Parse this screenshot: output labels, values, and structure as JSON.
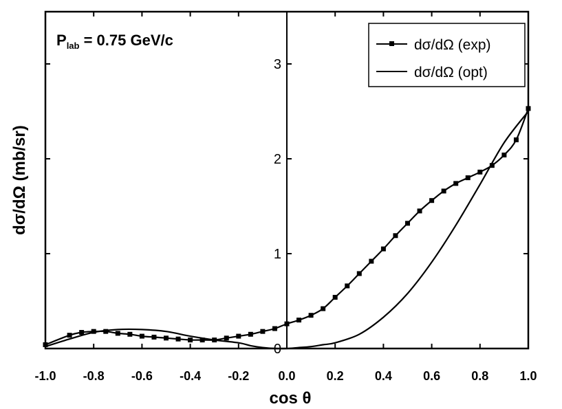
{
  "chart_data": {
    "type": "line",
    "annotation": {
      "main": "P",
      "subscript": "lab",
      "rest": " = 0.75 GeV/c"
    },
    "xlabel": "cos θ",
    "ylabel": "dσ/dΩ (mb/sr)",
    "xlim": [
      -1.0,
      1.0
    ],
    "ylim": [
      0,
      3.5
    ],
    "x_ticks": [
      "-1.0",
      "-0.8",
      "-0.6",
      "-0.4",
      "-0.2",
      "0.0",
      "0.2",
      "0.4",
      "0.6",
      "0.8",
      "1.0"
    ],
    "x_tick_values": [
      -1.0,
      -0.8,
      -0.6,
      -0.4,
      -0.2,
      0.0,
      0.2,
      0.4,
      0.6,
      0.8,
      1.0
    ],
    "y_ticks": [
      "0",
      "1",
      "2",
      "3"
    ],
    "y_tick_values": [
      0,
      1,
      2,
      3
    ],
    "legend_position": "top-right",
    "series": [
      {
        "name": "dσ/dΩ (exp)",
        "marker": "square",
        "x": [
          -1.0,
          -0.9,
          -0.85,
          -0.8,
          -0.75,
          -0.7,
          -0.65,
          -0.6,
          -0.55,
          -0.5,
          -0.45,
          -0.4,
          -0.35,
          -0.3,
          -0.25,
          -0.2,
          -0.15,
          -0.1,
          -0.05,
          0.0,
          0.05,
          0.1,
          0.15,
          0.2,
          0.25,
          0.3,
          0.35,
          0.4,
          0.45,
          0.5,
          0.55,
          0.6,
          0.65,
          0.7,
          0.75,
          0.8,
          0.85,
          0.9,
          0.95,
          1.0
        ],
        "y": [
          0.04,
          0.14,
          0.17,
          0.18,
          0.18,
          0.16,
          0.15,
          0.13,
          0.12,
          0.11,
          0.1,
          0.09,
          0.09,
          0.09,
          0.11,
          0.13,
          0.15,
          0.18,
          0.21,
          0.26,
          0.3,
          0.35,
          0.42,
          0.54,
          0.66,
          0.79,
          0.92,
          1.05,
          1.19,
          1.32,
          1.45,
          1.56,
          1.66,
          1.74,
          1.8,
          1.86,
          1.93,
          2.04,
          2.2,
          2.53
        ]
      },
      {
        "name": "dσ/dΩ (opt)",
        "marker": "none",
        "x": [
          -1.0,
          -0.9,
          -0.8,
          -0.7,
          -0.6,
          -0.5,
          -0.4,
          -0.3,
          -0.2,
          -0.15,
          -0.1,
          -0.05,
          0.0,
          0.05,
          0.1,
          0.15,
          0.2,
          0.3,
          0.4,
          0.5,
          0.6,
          0.7,
          0.8,
          0.9,
          1.0
        ],
        "y": [
          0.02,
          0.1,
          0.17,
          0.2,
          0.2,
          0.18,
          0.13,
          0.09,
          0.06,
          0.03,
          0.01,
          0.0,
          0.0,
          0.01,
          0.02,
          0.04,
          0.06,
          0.15,
          0.33,
          0.58,
          0.91,
          1.3,
          1.73,
          2.17,
          2.5
        ]
      }
    ]
  }
}
